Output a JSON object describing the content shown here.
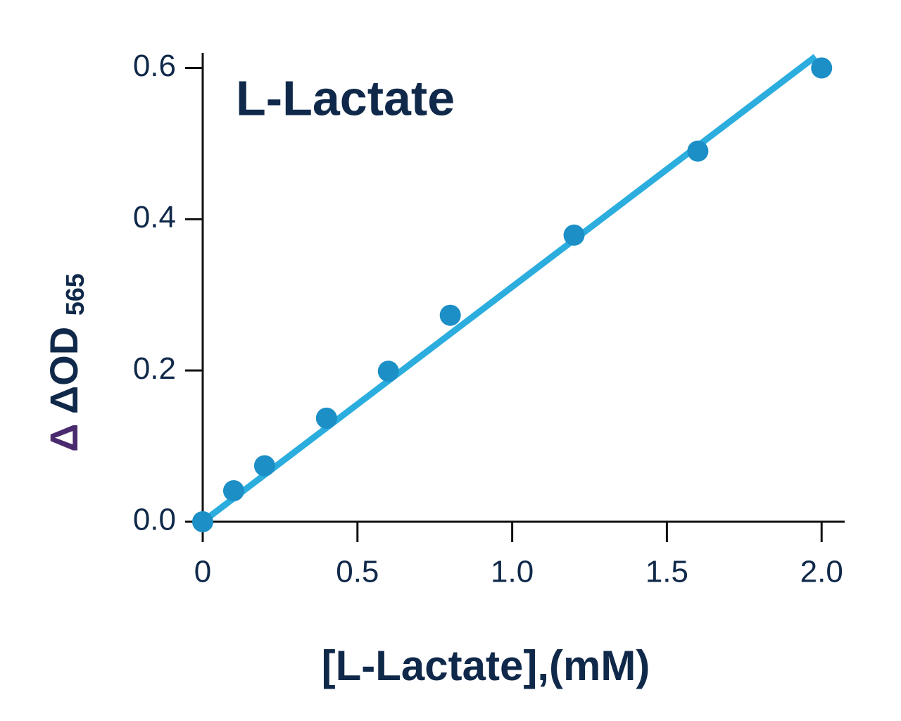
{
  "chart_data": {
    "type": "scatter",
    "title": "L-Lactate",
    "xlabel": "[L-Lactate],(mM)",
    "ylabel_prefix": "Δ",
    "ylabel": "ΔOD",
    "ylabel_subscript": "565",
    "x": [
      0,
      0.1,
      0.2,
      0.4,
      0.6,
      0.8,
      1.2,
      1.6,
      2.0
    ],
    "values": [
      0,
      0.041,
      0.074,
      0.137,
      0.199,
      0.273,
      0.379,
      0.49,
      0.6
    ],
    "color": "#1b8fc6",
    "fit": {
      "x": [
        0,
        1.98
      ],
      "y": [
        0,
        0.615
      ],
      "color": "#2badde"
    },
    "xlim": [
      0,
      2.07
    ],
    "ylim": [
      0,
      0.62
    ],
    "xticks": [
      0,
      0.5,
      {
        "value": 1,
        "label": "1.0"
      },
      1.5,
      {
        "value": 2,
        "label": "2.0"
      }
    ],
    "yticks": [
      {
        "value": 0,
        "label": "0.0"
      },
      0.2,
      0.4,
      0.6
    ]
  }
}
